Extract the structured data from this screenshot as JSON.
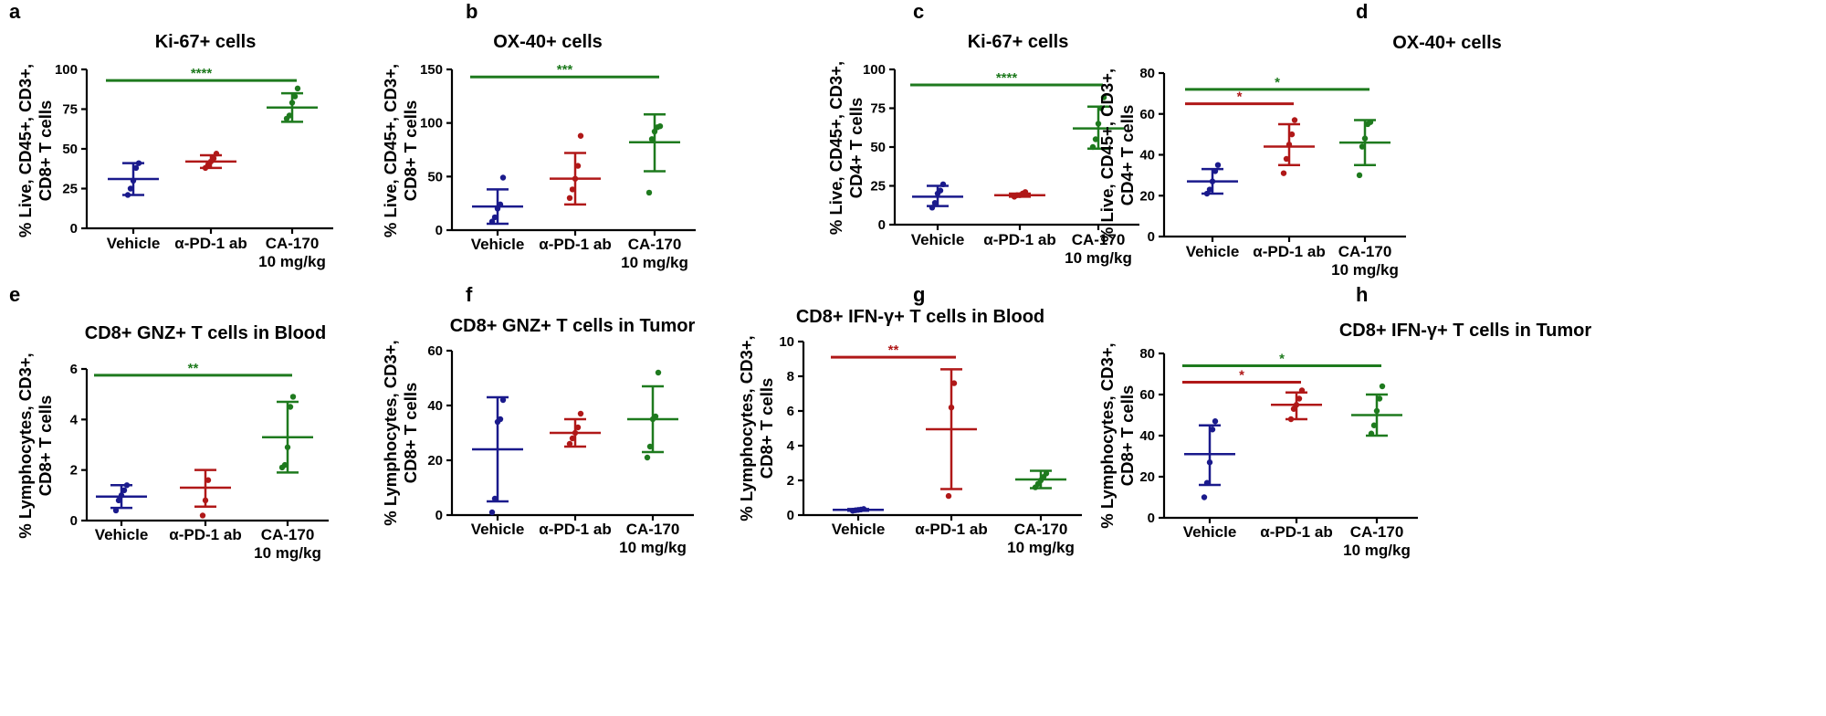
{
  "colors": {
    "vehicle": "#1a1a8c",
    "pd1": "#b01818",
    "ca170": "#1e7a1e",
    "axis": "#000000"
  },
  "groups": [
    "Vehicle",
    "α-PD-1 ab",
    "CA-170"
  ],
  "group_sub": [
    "",
    "",
    "10 mg/kg"
  ],
  "chart_data": [
    {
      "type": "scatter",
      "panel": "a",
      "title": "Ki-67+ cells",
      "ylabel": [
        "% Live, CD45+, CD3+,",
        "CD8+ T cells"
      ],
      "ylim": [
        0,
        100
      ],
      "yticks": [
        0,
        25,
        50,
        75,
        100
      ],
      "categories": [
        "Vehicle",
        "α-PD-1 ab",
        "CA-170 10 mg/kg"
      ],
      "series": [
        {
          "name": "Vehicle",
          "mean": 31,
          "sd_low": 21,
          "sd_high": 41,
          "points": [
            21,
            25,
            30,
            38,
            41
          ]
        },
        {
          "name": "α-PD-1 ab",
          "mean": 42,
          "sd_low": 38,
          "sd_high": 46,
          "points": [
            38,
            40,
            42,
            44,
            47
          ]
        },
        {
          "name": "CA-170 10 mg/kg",
          "mean": 76,
          "sd_low": 67,
          "sd_high": 85,
          "points": [
            69,
            71,
            79,
            83,
            88
          ]
        }
      ],
      "significance": [
        {
          "from": 0,
          "to": 2,
          "label": "****",
          "color": "green",
          "y": 93
        }
      ]
    },
    {
      "type": "scatter",
      "panel": "b",
      "title": "OX-40+ cells",
      "ylabel": [
        "% Live, CD45+, CD3+,",
        "CD8+ T cells"
      ],
      "ylim": [
        0,
        150
      ],
      "yticks": [
        0,
        50,
        100,
        150
      ],
      "categories": [
        "Vehicle",
        "α-PD-1 ab",
        "CA-170 10 mg/kg"
      ],
      "series": [
        {
          "name": "Vehicle",
          "mean": 22,
          "sd_low": 6,
          "sd_high": 38,
          "points": [
            8,
            12,
            20,
            24,
            49
          ]
        },
        {
          "name": "α-PD-1 ab",
          "mean": 48,
          "sd_low": 24,
          "sd_high": 72,
          "points": [
            30,
            38,
            48,
            60,
            88
          ]
        },
        {
          "name": "CA-170 10 mg/kg",
          "mean": 82,
          "sd_low": 55,
          "sd_high": 108,
          "points": [
            35,
            85,
            92,
            96,
            97
          ]
        }
      ],
      "significance": [
        {
          "from": 0,
          "to": 2,
          "label": "***",
          "color": "green",
          "y": 143
        }
      ]
    },
    {
      "type": "scatter",
      "panel": "c",
      "title": "Ki-67+ cells",
      "ylabel": [
        "% Live,  CD45+, CD3+,",
        "CD4+ T cells"
      ],
      "ylim": [
        0,
        100
      ],
      "yticks": [
        0,
        25,
        50,
        75,
        100
      ],
      "categories": [
        "Vehicle",
        "α-PD-1 ab",
        "CA-170 10 mg/kg"
      ],
      "series": [
        {
          "name": "Vehicle",
          "mean": 18,
          "sd_low": 12,
          "sd_high": 25,
          "points": [
            11,
            14,
            20,
            22,
            26
          ]
        },
        {
          "name": "α-PD-1 ab",
          "mean": 19,
          "sd_low": 18,
          "sd_high": 20,
          "points": [
            18,
            19,
            19,
            20,
            21
          ]
        },
        {
          "name": "CA-170 10 mg/kg",
          "mean": 62,
          "sd_low": 49,
          "sd_high": 76,
          "points": [
            50,
            55,
            65,
            75,
            82
          ]
        }
      ],
      "significance": [
        {
          "from": 0,
          "to": 2,
          "label": "****",
          "color": "green",
          "y": 90
        }
      ]
    },
    {
      "type": "scatter",
      "panel": "d",
      "title": "OX-40+ cells",
      "ylabel": [
        "% Live, CD45+, CD3+,",
        "CD4+ T cells"
      ],
      "ylim": [
        0,
        80
      ],
      "yticks": [
        0,
        20,
        40,
        60,
        80
      ],
      "categories": [
        "Vehicle",
        "α-PD-1 ab",
        "CA-170 10 mg/kg"
      ],
      "series": [
        {
          "name": "Vehicle",
          "mean": 27,
          "sd_low": 21,
          "sd_high": 33,
          "points": [
            21,
            23,
            27,
            32,
            35
          ]
        },
        {
          "name": "α-PD-1 ab",
          "mean": 44,
          "sd_low": 35,
          "sd_high": 55,
          "points": [
            31,
            38,
            45,
            50,
            57
          ]
        },
        {
          "name": "CA-170 10 mg/kg",
          "mean": 46,
          "sd_low": 35,
          "sd_high": 57,
          "points": [
            30,
            44,
            48,
            55,
            56
          ]
        }
      ],
      "significance": [
        {
          "from": 0,
          "to": 1,
          "label": "*",
          "color": "red",
          "y": 65
        },
        {
          "from": 0,
          "to": 2,
          "label": "*",
          "color": "green",
          "y": 72
        }
      ]
    },
    {
      "type": "scatter",
      "panel": "e",
      "title": "CD8+ GNZ+ T cells in Blood",
      "ylabel": [
        "% Lymphocytes, CD3+,",
        "CD8+ T cells"
      ],
      "ylim": [
        0,
        6
      ],
      "yticks": [
        0,
        2,
        4,
        6
      ],
      "categories": [
        "Vehicle",
        "α-PD-1 ab",
        "CA-170 10 mg/kg"
      ],
      "series": [
        {
          "name": "Vehicle",
          "mean": 0.95,
          "sd_low": 0.5,
          "sd_high": 1.4,
          "points": [
            0.4,
            0.8,
            1.0,
            1.2,
            1.4
          ]
        },
        {
          "name": "α-PD-1 ab",
          "mean": 1.3,
          "sd_low": 0.55,
          "sd_high": 2.0,
          "points": [
            0.2,
            0.8,
            1.6
          ]
        },
        {
          "name": "CA-170 10 mg/kg",
          "mean": 3.3,
          "sd_low": 1.9,
          "sd_high": 4.7,
          "points": [
            2.1,
            2.2,
            2.9,
            4.5,
            4.9
          ]
        }
      ],
      "significance": [
        {
          "from": 0,
          "to": 2,
          "label": "**",
          "color": "green",
          "y": 5.75
        }
      ]
    },
    {
      "type": "scatter",
      "panel": "f",
      "title": "CD8+ GNZ+ T cells in Tumor",
      "ylabel": [
        "% Lymphocytes, CD3+,",
        "CD8+ T cells"
      ],
      "ylim": [
        0,
        60
      ],
      "yticks": [
        0,
        20,
        40,
        60
      ],
      "categories": [
        "Vehicle",
        "α-PD-1 ab",
        "CA-170 10 mg/kg"
      ],
      "series": [
        {
          "name": "Vehicle",
          "mean": 24,
          "sd_low": 5,
          "sd_high": 43,
          "points": [
            1,
            6,
            34,
            35,
            42
          ]
        },
        {
          "name": "α-PD-1 ab",
          "mean": 30,
          "sd_low": 25,
          "sd_high": 35,
          "points": [
            26,
            28,
            30,
            32,
            37
          ]
        },
        {
          "name": "CA-170 10 mg/kg",
          "mean": 35,
          "sd_low": 23,
          "sd_high": 47,
          "points": [
            21,
            25,
            35,
            36,
            52
          ]
        }
      ],
      "significance": []
    },
    {
      "type": "scatter",
      "panel": "g",
      "title": "CD8+ IFN-γ+ T cells in  Blood",
      "ylabel": [
        "% Lymphocytes, CD3+,",
        "CD8+ T cells"
      ],
      "ylim": [
        0,
        10
      ],
      "yticks": [
        0,
        2,
        4,
        6,
        8,
        10
      ],
      "categories": [
        "Vehicle",
        "α-PD-1 ab",
        "CA-170 10 mg/kg"
      ],
      "series": [
        {
          "name": "Vehicle",
          "mean": 0.3,
          "sd_low": 0.25,
          "sd_high": 0.35,
          "points": [
            0.25,
            0.28,
            0.3,
            0.32,
            0.35
          ]
        },
        {
          "name": "α-PD-1 ab",
          "mean": 4.95,
          "sd_low": 1.5,
          "sd_high": 8.4,
          "points": [
            1.1,
            6.2,
            7.6
          ]
        },
        {
          "name": "CA-170 10 mg/kg",
          "mean": 2.05,
          "sd_low": 1.55,
          "sd_high": 2.55,
          "points": [
            1.6,
            1.8,
            2.0,
            2.2,
            2.4
          ]
        }
      ],
      "significance": [
        {
          "from": 0,
          "to": 1,
          "label": "**",
          "color": "red",
          "y": 9.1
        }
      ]
    },
    {
      "type": "scatter",
      "panel": "h",
      "title": "CD8+ IFN-γ+ T cells in Tumor",
      "ylabel": [
        "% Lymphocytes, CD3+,",
        "CD8+ T cells"
      ],
      "ylim": [
        0,
        80
      ],
      "yticks": [
        0,
        20,
        40,
        60,
        80
      ],
      "categories": [
        "Vehicle",
        "α-PD-1 ab",
        "CA-170 10 mg/kg"
      ],
      "series": [
        {
          "name": "Vehicle",
          "mean": 31,
          "sd_low": 16,
          "sd_high": 45,
          "points": [
            10,
            17,
            27,
            43,
            47
          ]
        },
        {
          "name": "α-PD-1 ab",
          "mean": 55,
          "sd_low": 48,
          "sd_high": 61,
          "points": [
            48,
            53,
            55,
            58,
            62
          ]
        },
        {
          "name": "CA-170 10 mg/kg",
          "mean": 50,
          "sd_low": 40,
          "sd_high": 60,
          "points": [
            41,
            45,
            52,
            58,
            64
          ]
        }
      ],
      "significance": [
        {
          "from": 0,
          "to": 1,
          "label": "*",
          "color": "red",
          "y": 66
        },
        {
          "from": 0,
          "to": 2,
          "label": "*",
          "color": "green",
          "y": 74
        }
      ]
    }
  ]
}
